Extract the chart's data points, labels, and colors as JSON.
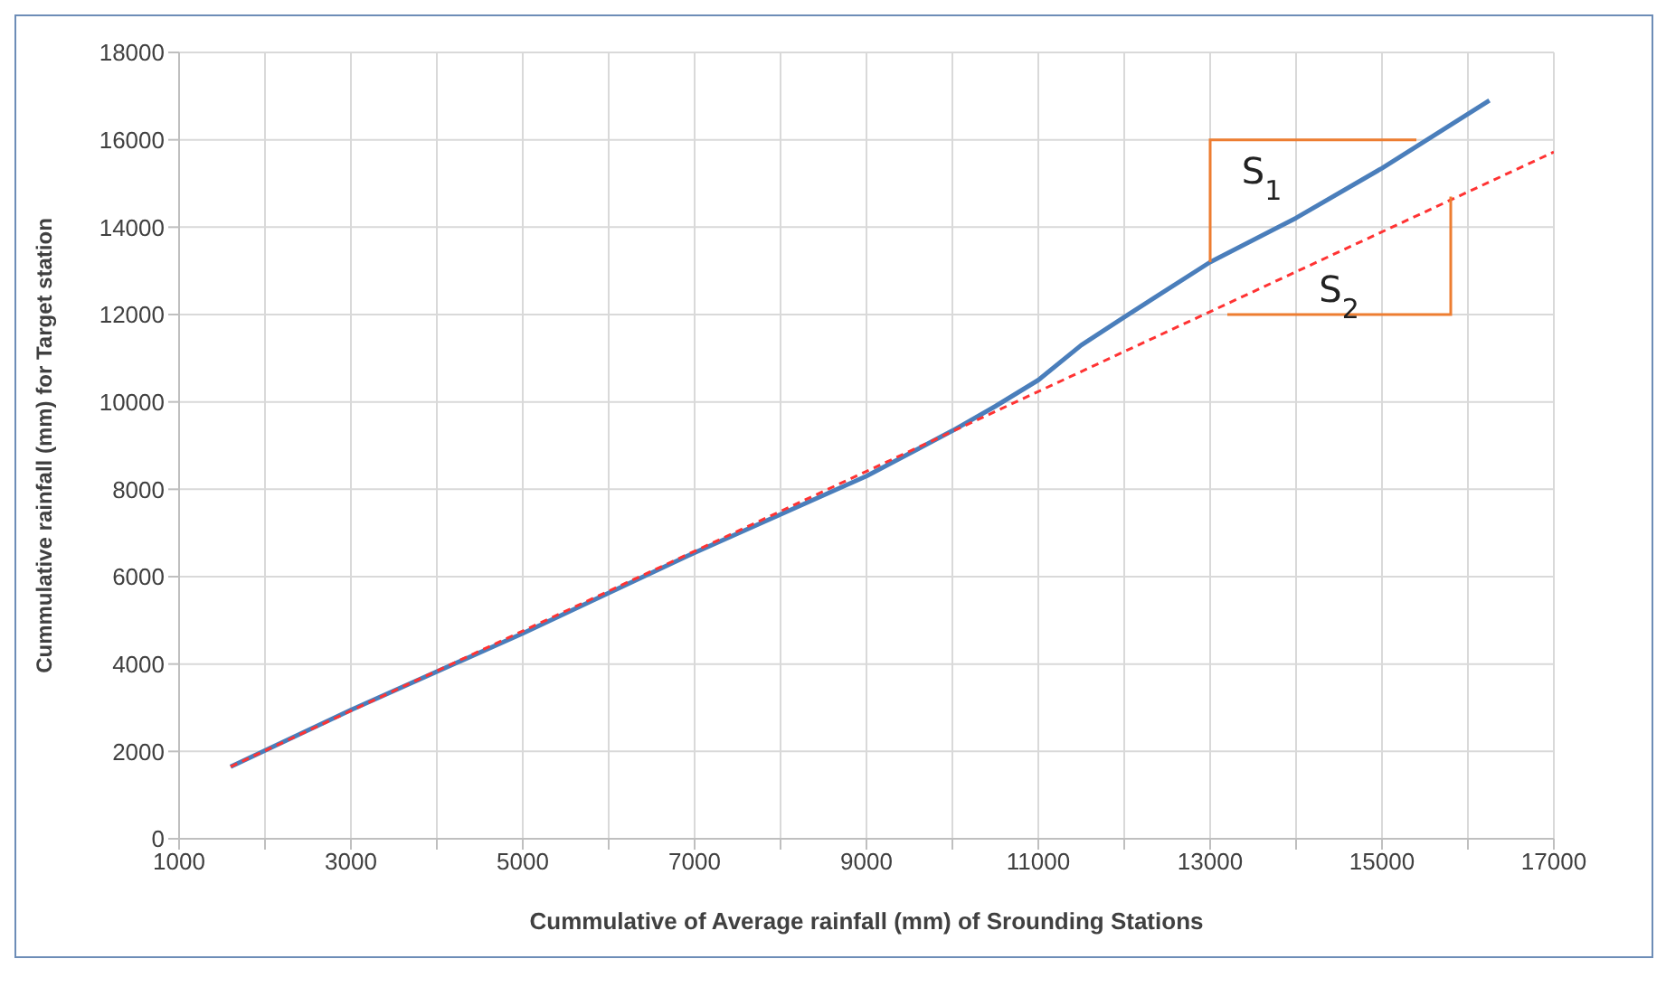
{
  "chart_data": {
    "type": "line",
    "xlabel": "Cummulative of Average rainfall (mm) of Srounding Stations",
    "ylabel": "Cummulative rainfall (mm) for Target station",
    "xlim": [
      1000,
      17000
    ],
    "xticks": [
      1000,
      {
        "value": 2000,
        "label": null
      },
      3000,
      {
        "value": 4000,
        "label": null
      },
      5000,
      {
        "value": 6000,
        "label": null
      },
      7000,
      {
        "value": 8000,
        "label": null
      },
      9000,
      {
        "value": 10000,
        "label": null
      },
      11000,
      {
        "value": 12000,
        "label": null
      },
      13000,
      {
        "value": 14000,
        "label": null
      },
      15000,
      {
        "value": 16000,
        "label": null
      },
      17000
    ],
    "ylim": [
      0,
      18000
    ],
    "yticks": [
      0,
      2000,
      4000,
      6000,
      8000,
      10000,
      12000,
      14000,
      16000,
      18000
    ],
    "grid": true,
    "marker": "none",
    "series": [
      {
        "color": "#4a7ebb",
        "line_style": "solid",
        "x": [
          1600,
          3000,
          5000,
          7000,
          9000,
          10000,
          10500,
          11000,
          11500,
          12000,
          13000,
          14000,
          15000,
          16250
        ],
        "values": [
          1650,
          2950,
          4700,
          6550,
          8300,
          9340,
          9900,
          10500,
          11300,
          11940,
          13200,
          14210,
          15350,
          16900
        ]
      },
      {
        "color": "#ff3333",
        "line_style": "dashed",
        "x": [
          1600,
          17000
        ],
        "values": [
          1650,
          15720
        ]
      }
    ],
    "annotations": [
      "S$_{1}$",
      "S$_{2}$"
    ]
  }
}
